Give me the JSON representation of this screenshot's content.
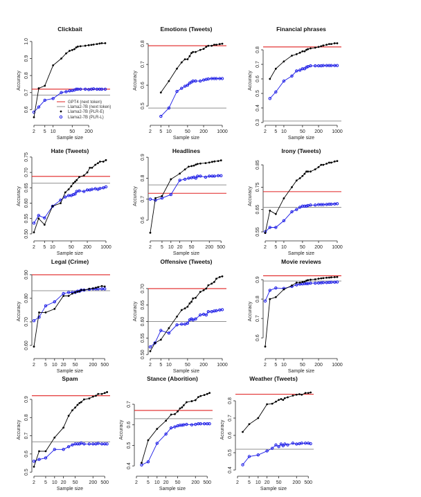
{
  "colors": {
    "gpt4": "#e02020",
    "llama_next": "#909090",
    "plr_e": "#000000",
    "plr_l": "#1a1ae6"
  },
  "legend": {
    "placement": "bottom-right of first panel",
    "entries": [
      "GPT4 (next token)",
      "Llama2-7B (next token)",
      "Llama2-7B (PLR-E)",
      "Llama2-7B (PLR-L)"
    ]
  },
  "chart_data": [
    {
      "type": "line",
      "title": "Clickbait",
      "xlabel": "Sample size",
      "ylabel": "Accuracy",
      "xscale": "log",
      "xlim": [
        2,
        850
      ],
      "ylim": [
        0.52,
        1.02
      ],
      "xticks": [
        "2",
        "5",
        "10",
        "50",
        "200"
      ],
      "yticks": [
        "0.6",
        "0.7",
        "0.8",
        "0.9",
        "1.0"
      ],
      "gpt4": 0.72,
      "llama_next": 0.685,
      "x": [
        2,
        3,
        5,
        10,
        20,
        30,
        40,
        50,
        60,
        70,
        80,
        100,
        150,
        200,
        250,
        300,
        400,
        500,
        600,
        800
      ],
      "plr_e": [
        0.555,
        0.725,
        0.74,
        0.86,
        0.9,
        0.93,
        0.945,
        0.95,
        0.955,
        0.965,
        0.97,
        0.972,
        0.975,
        0.978,
        0.98,
        0.982,
        0.985,
        0.988,
        0.99,
        0.99
      ],
      "plr_l": [
        0.585,
        0.615,
        0.655,
        0.665,
        0.7,
        0.705,
        0.71,
        0.712,
        0.715,
        0.72,
        0.72,
        0.72,
        0.72,
        0.718,
        0.72,
        0.722,
        0.72,
        0.72,
        0.72,
        0.72
      ]
    },
    {
      "type": "line",
      "title": "Emotions (Tweets)",
      "xlabel": "Sample size",
      "ylabel": "Accuracy",
      "xscale": "log",
      "xlim": [
        2,
        1000
      ],
      "ylim": [
        0.417,
        0.827
      ],
      "xticks": [
        "2",
        "5",
        "10",
        "50",
        "200",
        "1000"
      ],
      "yticks": [
        "0.5",
        "0.6",
        "0.7",
        "0.8"
      ],
      "gpt4": 0.79,
      "llama_next": 0.49,
      "x": [
        5,
        10,
        20,
        30,
        40,
        50,
        60,
        70,
        80,
        100,
        150,
        200,
        250,
        300,
        400,
        500,
        600,
        800,
        1000
      ],
      "plr_e": [
        0.565,
        0.62,
        0.68,
        0.71,
        0.725,
        0.725,
        0.74,
        0.755,
        0.76,
        0.76,
        0.77,
        0.775,
        0.785,
        0.79,
        0.79,
        0.795,
        0.795,
        0.798,
        0.8
      ],
      "plr_l": [
        0.45,
        0.49,
        0.57,
        0.585,
        0.595,
        0.6,
        0.61,
        0.615,
        0.62,
        0.62,
        0.62,
        0.625,
        0.628,
        0.63,
        0.632,
        0.632,
        0.632,
        0.632,
        0.632
      ]
    },
    {
      "type": "line",
      "title": "Financial phrases",
      "xlabel": "Sample size",
      "ylabel": "Accuracy",
      "xscale": "log",
      "xlim": [
        2,
        1000
      ],
      "ylim": [
        0.295,
        0.881
      ],
      "xticks": [
        "2",
        "5",
        "10",
        "50",
        "200",
        "1000"
      ],
      "yticks": [
        "0.3",
        "0.4",
        "0.5",
        "0.6",
        "0.7",
        "0.8"
      ],
      "gpt4": 0.82,
      "llama_next": 0.31,
      "x": [
        3,
        5,
        10,
        20,
        30,
        40,
        50,
        60,
        70,
        80,
        100,
        150,
        200,
        250,
        300,
        400,
        500,
        600,
        800,
        1000
      ],
      "plr_e": [
        0.6,
        0.67,
        0.72,
        0.76,
        0.77,
        0.78,
        0.79,
        0.79,
        0.8,
        0.805,
        0.81,
        0.815,
        0.82,
        0.825,
        0.83,
        0.835,
        0.84,
        0.84,
        0.845,
        0.845
      ],
      "plr_l": [
        0.465,
        0.51,
        0.585,
        0.62,
        0.655,
        0.66,
        0.67,
        0.67,
        0.68,
        0.685,
        0.69,
        0.69,
        0.69,
        0.69,
        0.692,
        0.692,
        0.692,
        0.692,
        0.692,
        0.692
      ]
    },
    {
      "type": "line",
      "title": "Hate (Tweets)",
      "xlabel": "Sample size",
      "ylabel": "Accuracy",
      "xscale": "log",
      "xlim": [
        2,
        1000
      ],
      "ylim": [
        0.484,
        0.761
      ],
      "xticks": [
        "2",
        "5",
        "10",
        "50",
        "200",
        "1000"
      ],
      "yticks": [
        "0.50",
        "0.55",
        "0.60",
        "0.65",
        "0.70",
        "0.75"
      ],
      "gpt4": 0.687,
      "llama_next": 0.665,
      "x": [
        2,
        3,
        5,
        10,
        20,
        30,
        40,
        50,
        60,
        70,
        80,
        100,
        150,
        200,
        250,
        300,
        400,
        500,
        600,
        800,
        1000
      ],
      "plr_e": [
        0.505,
        0.55,
        0.53,
        0.59,
        0.6,
        0.635,
        0.645,
        0.655,
        0.665,
        0.67,
        0.675,
        0.685,
        0.69,
        0.7,
        0.715,
        0.715,
        0.725,
        0.73,
        0.735,
        0.735,
        0.74
      ],
      "plr_l": [
        0.535,
        0.56,
        0.552,
        0.59,
        0.61,
        0.62,
        0.625,
        0.625,
        0.628,
        0.63,
        0.638,
        0.64,
        0.638,
        0.643,
        0.643,
        0.645,
        0.647,
        0.645,
        0.648,
        0.65,
        0.653
      ]
    },
    {
      "type": "line",
      "title": "Headlines",
      "xlabel": "Sample size",
      "ylabel": "Accuracy",
      "xscale": "log",
      "xlim": [
        2,
        550
      ],
      "ylim": [
        0.511,
        0.917
      ],
      "xticks": [
        "2",
        "5",
        "10",
        "20",
        "50",
        "200",
        "500"
      ],
      "yticks": [
        "0.6",
        "0.7",
        "0.8",
        "0.9"
      ],
      "gpt4": 0.728,
      "llama_next": 0.768,
      "x": [
        2,
        3,
        5,
        10,
        20,
        30,
        40,
        50,
        60,
        70,
        80,
        100,
        150,
        200,
        250,
        300,
        400,
        500
      ],
      "plr_e": [
        0.54,
        0.705,
        0.715,
        0.795,
        0.822,
        0.842,
        0.855,
        0.858,
        0.86,
        0.865,
        0.868,
        0.87,
        0.872,
        0.875,
        0.878,
        0.88,
        0.882,
        0.885
      ],
      "plr_l": [
        0.7,
        0.695,
        0.705,
        0.722,
        0.79,
        0.795,
        0.8,
        0.802,
        0.805,
        0.8,
        0.81,
        0.81,
        0.805,
        0.81,
        0.81,
        0.81,
        0.812,
        0.812
      ]
    },
    {
      "type": "line",
      "title": "Irony (Tweets)",
      "xlabel": "Sample size",
      "ylabel": "Accuracy",
      "xscale": "log",
      "xlim": [
        2,
        1000
      ],
      "ylim": [
        0.519,
        0.9
      ],
      "xticks": [
        "2",
        "5",
        "10",
        "50",
        "200",
        "1000"
      ],
      "yticks": [
        "0.55",
        "0.65",
        "0.75",
        "0.85"
      ],
      "gpt4": 0.73,
      "llama_next": 0.66,
      "x": [
        2,
        3,
        5,
        10,
        20,
        30,
        40,
        50,
        60,
        70,
        80,
        100,
        150,
        200,
        250,
        300,
        400,
        500,
        600,
        800,
        1000
      ],
      "plr_e": [
        0.545,
        0.645,
        0.63,
        0.7,
        0.75,
        0.78,
        0.79,
        0.8,
        0.81,
        0.82,
        0.82,
        0.82,
        0.83,
        0.84,
        0.85,
        0.85,
        0.855,
        0.86,
        0.86,
        0.865,
        0.867
      ],
      "plr_l": [
        0.55,
        0.57,
        0.57,
        0.6,
        0.64,
        0.65,
        0.66,
        0.665,
        0.665,
        0.665,
        0.668,
        0.67,
        0.67,
        0.672,
        0.672,
        0.672,
        0.673,
        0.674,
        0.674,
        0.675,
        0.676
      ]
    },
    {
      "type": "line",
      "title": "Legal (Crime)",
      "xlabel": "Sample size",
      "ylabel": "Accuracy",
      "xscale": "log",
      "xlim": [
        2,
        550
      ],
      "ylim": [
        0.553,
        0.935
      ],
      "xticks": [
        "2",
        "5",
        "10",
        "20",
        "50",
        "200",
        "500"
      ],
      "yticks": [
        "0.60",
        "0.70",
        "0.80",
        "0.90"
      ],
      "gpt4": 0.9,
      "llama_next": 0.832,
      "x": [
        2,
        3,
        5,
        10,
        20,
        30,
        40,
        50,
        60,
        70,
        80,
        100,
        150,
        200,
        250,
        300,
        400,
        500
      ],
      "plr_e": [
        0.595,
        0.74,
        0.74,
        0.755,
        0.81,
        0.81,
        0.82,
        0.825,
        0.828,
        0.83,
        0.835,
        0.835,
        0.84,
        0.842,
        0.845,
        0.848,
        0.852,
        0.85
      ],
      "plr_l": [
        0.705,
        0.72,
        0.768,
        0.785,
        0.82,
        0.825,
        0.825,
        0.825,
        0.83,
        0.83,
        0.835,
        0.835,
        0.838,
        0.84,
        0.84,
        0.84,
        0.84,
        0.84
      ]
    },
    {
      "type": "line",
      "title": "Offensive (Tweets)",
      "xlabel": "Sample size",
      "ylabel": "Accuracy",
      "xscale": "log",
      "xlim": [
        2,
        1000
      ],
      "ylim": [
        0.494,
        0.767
      ],
      "xticks": [
        "2",
        "5",
        "10",
        "50",
        "200",
        "1000"
      ],
      "yticks": [
        "0.50",
        "0.55",
        "0.60",
        "0.65",
        "0.70"
      ],
      "gpt4": 0.7,
      "llama_next": 0.6,
      "x": [
        2,
        3,
        5,
        10,
        20,
        30,
        40,
        50,
        60,
        70,
        80,
        100,
        150,
        200,
        250,
        300,
        400,
        500,
        600,
        800,
        1000
      ],
      "plr_e": [
        0.51,
        0.535,
        0.545,
        0.58,
        0.615,
        0.635,
        0.64,
        0.645,
        0.655,
        0.66,
        0.67,
        0.672,
        0.69,
        0.695,
        0.7,
        0.71,
        0.715,
        0.72,
        0.73,
        0.735,
        0.737
      ],
      "plr_l": [
        0.523,
        0.535,
        0.573,
        0.565,
        0.59,
        0.592,
        0.592,
        0.595,
        0.605,
        0.608,
        0.605,
        0.608,
        0.62,
        0.622,
        0.62,
        0.63,
        0.63,
        0.632,
        0.633,
        0.635,
        0.636
      ]
    },
    {
      "type": "line",
      "title": "Movie reviews",
      "xlabel": "Sample size",
      "ylabel": "Accuracy",
      "xscale": "log",
      "xlim": [
        2,
        1000
      ],
      "ylim": [
        0.504,
        0.968
      ],
      "xticks": [
        "2",
        "5",
        "10",
        "50",
        "200",
        "1000"
      ],
      "yticks": [
        "0.6",
        "0.7",
        "0.8",
        "0.9"
      ],
      "gpt4": 0.92,
      "llama_next": 0.893,
      "x": [
        2,
        3,
        5,
        10,
        20,
        30,
        40,
        50,
        60,
        70,
        80,
        100,
        150,
        200,
        250,
        300,
        400,
        500,
        600,
        800,
        1000
      ],
      "plr_e": [
        0.555,
        0.8,
        0.81,
        0.85,
        0.87,
        0.885,
        0.885,
        0.888,
        0.89,
        0.895,
        0.898,
        0.9,
        0.902,
        0.905,
        0.907,
        0.908,
        0.91,
        0.911,
        0.912,
        0.913,
        0.914
      ],
      "plr_l": [
        0.79,
        0.845,
        0.857,
        0.855,
        0.865,
        0.873,
        0.877,
        0.878,
        0.88,
        0.88,
        0.88,
        0.882,
        0.882,
        0.883,
        0.884,
        0.885,
        0.885,
        0.886,
        0.887,
        0.887,
        0.888
      ]
    },
    {
      "type": "line",
      "title": "Spam",
      "xlabel": "Sample size",
      "ylabel": "Accuracy",
      "xscale": "log",
      "xlim": [
        2,
        550
      ],
      "ylim": [
        0.489,
        0.976
      ],
      "xticks": [
        "2",
        "5",
        "10",
        "20",
        "50",
        "200",
        "500"
      ],
      "yticks": [
        "0.5",
        "0.6",
        "0.7",
        "0.8",
        "0.9"
      ],
      "gpt4": 0.92,
      "llama_next": 0.667,
      "x": [
        2,
        3,
        5,
        10,
        20,
        30,
        40,
        50,
        60,
        70,
        80,
        100,
        150,
        200,
        250,
        300,
        400,
        500,
        600
      ],
      "plr_e": [
        0.53,
        0.615,
        0.615,
        0.69,
        0.745,
        0.81,
        0.84,
        0.855,
        0.87,
        0.88,
        0.885,
        0.9,
        0.905,
        0.915,
        0.92,
        0.93,
        0.93,
        0.935,
        0.94
      ],
      "plr_l": [
        0.56,
        0.57,
        0.578,
        0.625,
        0.625,
        0.64,
        0.65,
        0.655,
        0.655,
        0.655,
        0.66,
        0.655,
        0.655,
        0.655,
        0.655,
        0.658,
        0.655,
        0.655,
        0.655
      ]
    },
    {
      "type": "line",
      "title": "Stance (Aborition)",
      "xlabel": "Sample size",
      "ylabel": "Accuracy",
      "xscale": "log",
      "xlim": [
        2,
        550
      ],
      "ylim": [
        0.36,
        0.791
      ],
      "xticks": [
        "2",
        "5",
        "10",
        "20",
        "50",
        "200",
        "500"
      ],
      "yticks": [
        "0.4",
        "0.5",
        "0.6",
        "0.7"
      ],
      "gpt4": 0.67,
      "llama_next": 0.63,
      "x": [
        3,
        5,
        10,
        20,
        30,
        40,
        50,
        60,
        70,
        80,
        100,
        150,
        200,
        250,
        300,
        400,
        500,
        600
      ],
      "plr_e": [
        0.415,
        0.525,
        0.58,
        0.62,
        0.65,
        0.652,
        0.665,
        0.68,
        0.685,
        0.695,
        0.71,
        0.715,
        0.72,
        0.735,
        0.74,
        0.745,
        0.75,
        0.755
      ],
      "plr_l": [
        0.405,
        0.42,
        0.51,
        0.555,
        0.585,
        0.59,
        0.595,
        0.598,
        0.598,
        0.6,
        0.602,
        0.6,
        0.602,
        0.605,
        0.605,
        0.605,
        0.605,
        0.605
      ]
    },
    {
      "type": "line",
      "title": "Weather (Tweets)",
      "xlabel": "Sample size",
      "ylabel": "Accuracy",
      "xscale": "log",
      "xlim": [
        2,
        550
      ],
      "ylim": [
        0.376,
        0.888
      ],
      "xticks": [
        "2",
        "5",
        "10",
        "20",
        "50",
        "200",
        "500"
      ],
      "yticks": [
        "0.4",
        "0.5",
        "0.6",
        "0.7",
        "0.8"
      ],
      "gpt4": 0.838,
      "llama_next": 0.52,
      "x": [
        3,
        5,
        10,
        20,
        30,
        40,
        50,
        60,
        70,
        80,
        100,
        150,
        200,
        250,
        300,
        400,
        500,
        600
      ],
      "plr_e": [
        0.62,
        0.665,
        0.7,
        0.78,
        0.783,
        0.795,
        0.805,
        0.81,
        0.805,
        0.815,
        0.82,
        0.83,
        0.835,
        0.838,
        0.835,
        0.845,
        0.845,
        0.848
      ],
      "plr_l": [
        0.43,
        0.478,
        0.487,
        0.51,
        0.525,
        0.545,
        0.535,
        0.55,
        0.54,
        0.55,
        0.545,
        0.555,
        0.55,
        0.552,
        0.555,
        0.555,
        0.555,
        0.552
      ]
    }
  ]
}
